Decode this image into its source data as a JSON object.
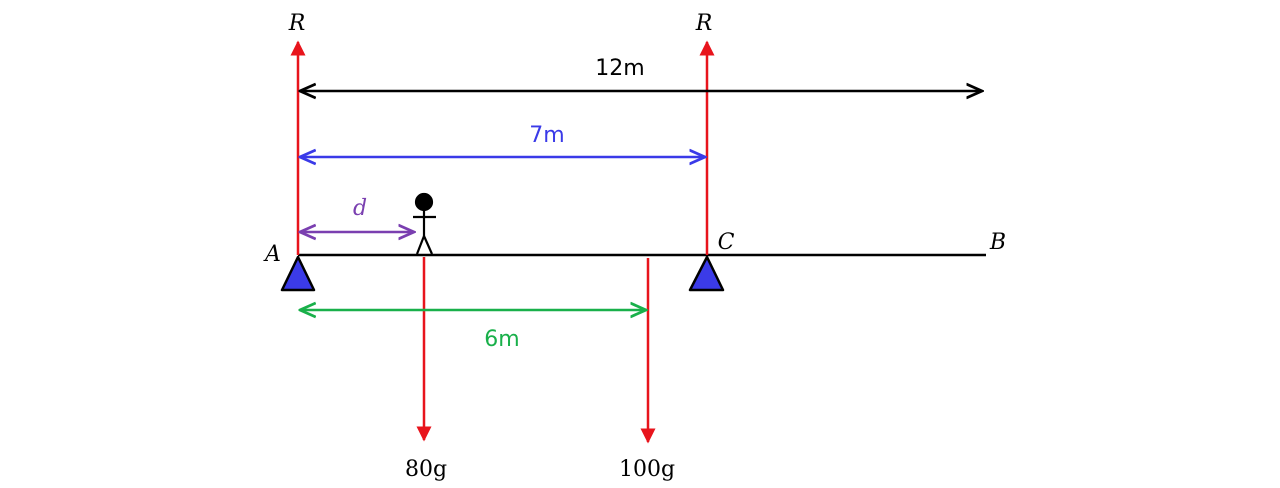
{
  "diagram": {
    "labels": {
      "reaction_left": "R",
      "reaction_right": "R",
      "point_a": "A",
      "point_b": "B",
      "point_c": "C",
      "dist_d": "d",
      "dist_12m": "12m",
      "dist_7m": "7m",
      "dist_6m": "6m",
      "load_person": "80g",
      "load_beam": "100g"
    },
    "colors": {
      "force": "#e8141c",
      "beam": "#000000",
      "dim_12m": "#000000",
      "dim_7m": "#3a3ae8",
      "dim_6m": "#19b04a",
      "dim_d": "#7a3fb0",
      "support_fill": "#3b3be8",
      "support_stroke": "#000000"
    },
    "icons": [
      "triangle-support-icon",
      "stick-figure-icon"
    ]
  }
}
